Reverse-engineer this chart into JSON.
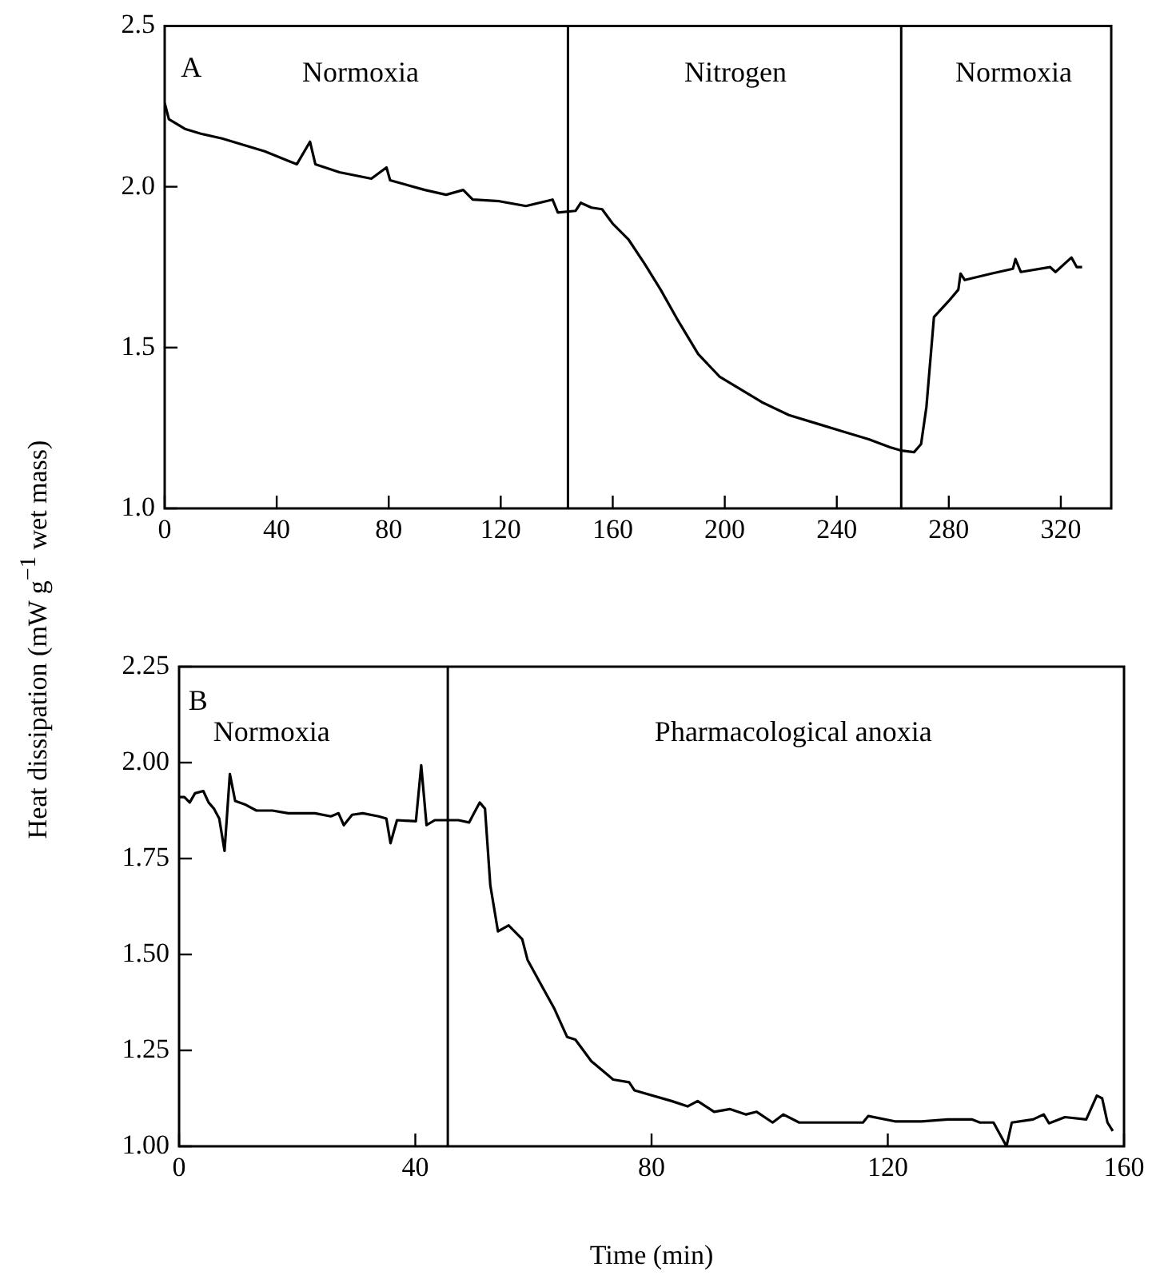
{
  "chart_data": [
    {
      "type": "line",
      "xlim": [
        0,
        338
      ],
      "xticks": [
        0,
        40,
        80,
        120,
        160,
        200,
        240,
        280,
        320
      ],
      "ylim": [
        1,
        2.5
      ],
      "yticks": [
        {
          "value": 1,
          "label": "1.0"
        },
        {
          "value": 1.5,
          "label": "1.5"
        },
        {
          "value": 2,
          "label": "2.0"
        },
        {
          "value": 2.5,
          "label": "2.5"
        }
      ],
      "grid": false,
      "legend": false,
      "marker": "none",
      "line_style": "solid",
      "series": [
        {
          "color": "#000000",
          "x": [
            0,
            1.5,
            7.2,
            12.9,
            20.5,
            28.1,
            35.7,
            44.3,
            47.2,
            51.9,
            53.8,
            62.4,
            73.8,
            79.2,
            80.5,
            92.9,
            100.5,
            106.6,
            110,
            119.5,
            129,
            138.5,
            140.4,
            146.7,
            148.6,
            152.4,
            156.2,
            160,
            165.7,
            171.4,
            177.1,
            182.9,
            190.5,
            198.1,
            203.8,
            213.3,
            222.9,
            232.4,
            241.9,
            251.4,
            259,
            262.9,
            267.6,
            270.1,
            272,
            274.7,
            280,
            283.4,
            284.2,
            285.7,
            295.2,
            302.9,
            303.8,
            305.7,
            316.2,
            318.1,
            323.8,
            325.7,
            327.6
          ],
          "values": [
            2.26,
            2.21,
            2.18,
            2.165,
            2.15,
            2.13,
            2.11,
            2.08,
            2.07,
            2.14,
            2.07,
            2.045,
            2.025,
            2.06,
            2.02,
            1.99,
            1.975,
            1.99,
            1.96,
            1.955,
            1.94,
            1.96,
            1.92,
            1.925,
            1.95,
            1.935,
            1.93,
            1.885,
            1.835,
            1.76,
            1.68,
            1.59,
            1.48,
            1.41,
            1.38,
            1.33,
            1.29,
            1.265,
            1.24,
            1.215,
            1.19,
            1.18,
            1.175,
            1.2,
            1.315,
            1.595,
            1.645,
            1.68,
            1.73,
            1.71,
            1.73,
            1.745,
            1.775,
            1.735,
            1.75,
            1.735,
            1.78,
            1.75,
            1.75
          ]
        }
      ],
      "ref_lines": [
        {
          "axis": "x",
          "value": 144,
          "color": "#000000"
        },
        {
          "axis": "x",
          "value": 263,
          "color": "#000000"
        }
      ],
      "annotations": [
        "A",
        "Normoxia",
        "Nitrogen",
        "Normoxia"
      ]
    },
    {
      "type": "line",
      "xlim": [
        0,
        160
      ],
      "xticks": [
        0,
        40,
        80,
        120,
        160
      ],
      "ylim": [
        1,
        2.25
      ],
      "yticks": [
        {
          "value": 1,
          "label": "1.00"
        },
        {
          "value": 1.25,
          "label": "1.25"
        },
        {
          "value": 1.5,
          "label": "1.50"
        },
        {
          "value": 1.75,
          "label": "1.75"
        },
        {
          "value": 2,
          "label": "2.00"
        },
        {
          "value": 2.25,
          "label": "2.25"
        }
      ],
      "grid": false,
      "legend": false,
      "marker": "none",
      "line_style": "solid",
      "xlabel": "Time (min)",
      "ylabel": "Heat dissipation (mW g$^{−1}$ wet mass)",
      "series": [
        {
          "color": "#000000",
          "x": [
            0,
            0.9,
            1.8,
            2.7,
            4.1,
            5,
            5.9,
            6.8,
            7.7,
            8.6,
            9.5,
            11.3,
            13.1,
            15.8,
            18.5,
            23,
            25.7,
            27,
            27.9,
            29.3,
            31.1,
            33.8,
            35.1,
            35.8,
            36.9,
            40.1,
            41,
            41.9,
            43.3,
            47.3,
            49.1,
            50.9,
            51.8,
            52.7,
            54,
            55.8,
            58.1,
            59,
            61.2,
            63.5,
            65.7,
            67.1,
            69.8,
            73.5,
            76.2,
            77.1,
            83.4,
            86.1,
            87.8,
            90.6,
            93.3,
            96,
            97.8,
            100.5,
            102.3,
            105,
            110.4,
            115.8,
            116.7,
            121.2,
            125.7,
            130.2,
            134.3,
            135.6,
            137.9,
            140.1,
            141,
            144.6,
            146.4,
            147.3,
            150,
            153.6,
            155.4,
            156.3,
            157.2,
            158.1
          ],
          "values": [
            1.91,
            1.91,
            1.896,
            1.92,
            1.926,
            1.896,
            1.88,
            1.854,
            1.77,
            1.97,
            1.9,
            1.89,
            1.875,
            1.875,
            1.868,
            1.868,
            1.86,
            1.868,
            1.837,
            1.864,
            1.868,
            1.86,
            1.854,
            1.79,
            1.85,
            1.847,
            1.993,
            1.837,
            1.85,
            1.85,
            1.844,
            1.896,
            1.88,
            1.68,
            1.56,
            1.576,
            1.54,
            1.486,
            1.424,
            1.36,
            1.285,
            1.278,
            1.222,
            1.174,
            1.167,
            1.146,
            1.118,
            1.104,
            1.118,
            1.09,
            1.097,
            1.083,
            1.09,
            1.062,
            1.083,
            1.062,
            1.062,
            1.062,
            1.079,
            1.065,
            1.065,
            1.07,
            1.07,
            1.062,
            1.062,
            1,
            1.062,
            1.07,
            1.083,
            1.06,
            1.076,
            1.07,
            1.132,
            1.125,
            1.062,
            1.04
          ]
        }
      ],
      "ref_lines": [
        {
          "axis": "x",
          "value": 45.5,
          "color": "#000000"
        }
      ],
      "annotations": [
        "B",
        "Normoxia",
        "Pharmacological anoxia"
      ]
    }
  ]
}
